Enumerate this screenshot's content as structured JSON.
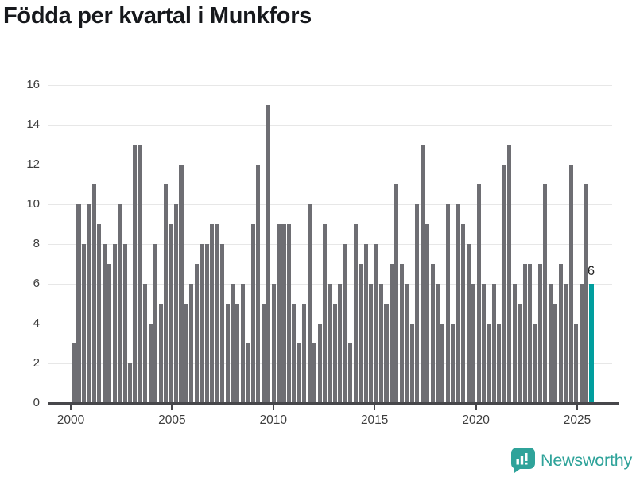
{
  "page": {
    "title": "Födda per kvartal i Munkfors"
  },
  "chart_data": {
    "type": "bar",
    "title": "Födda per kvartal i Munkfors",
    "xlabel": "",
    "ylabel": "",
    "x_tick_labels": [
      "2000",
      "2005",
      "2010",
      "2015",
      "2020",
      "2025"
    ],
    "y_ticks": [
      0,
      2,
      4,
      6,
      8,
      10,
      12,
      14,
      16
    ],
    "ylim": [
      0,
      16
    ],
    "grid": true,
    "legend": false,
    "start_period": "2000 Q1",
    "period_unit": "quarter",
    "values": [
      3,
      10,
      8,
      10,
      11,
      9,
      8,
      7,
      8,
      10,
      8,
      2,
      13,
      13,
      6,
      4,
      8,
      5,
      11,
      9,
      10,
      12,
      5,
      6,
      7,
      8,
      8,
      9,
      9,
      8,
      5,
      6,
      5,
      6,
      3,
      9,
      12,
      5,
      15,
      6,
      9,
      9,
      9,
      5,
      3,
      5,
      10,
      3,
      4,
      9,
      6,
      5,
      6,
      8,
      3,
      9,
      7,
      8,
      6,
      8,
      6,
      5,
      7,
      11,
      7,
      6,
      4,
      10,
      13,
      9,
      7,
      6,
      4,
      10,
      4,
      10,
      9,
      8,
      6,
      11,
      6,
      4,
      6,
      4,
      12,
      13,
      6,
      5,
      7,
      7,
      4,
      7,
      11,
      6,
      5,
      7,
      6,
      12,
      4,
      6,
      11,
      6
    ],
    "bar_color": "#6e6e73",
    "highlight_index": 101,
    "highlight_color": "#009e9e",
    "highlight_value_label": "6"
  },
  "footer": {
    "brand": "Newsworthy",
    "brand_color": "#2fa39a",
    "icon": "newsworthy-bars-bubble-icon"
  }
}
